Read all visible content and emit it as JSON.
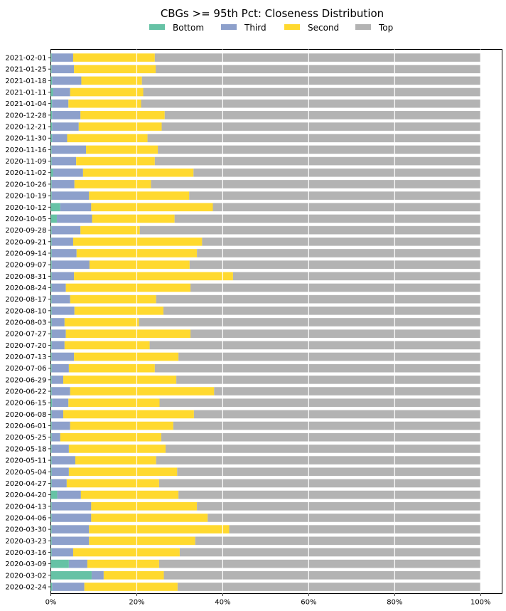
{
  "chart_data": {
    "type": "bar",
    "orientation": "horizontal",
    "stacked": true,
    "title": "CBGs >= 95th Pct: Closeness Distribution",
    "legend": {
      "placement": "top-center",
      "entries": [
        "Bottom",
        "Third",
        "Second",
        "Top"
      ]
    },
    "xlim": [
      0,
      1.05
    ],
    "xticks": [
      0,
      0.2,
      0.4,
      0.6,
      0.8,
      1.0
    ],
    "xtick_labels": [
      "0%",
      "20%",
      "40%",
      "60%",
      "80%",
      "100%"
    ],
    "grid": {
      "x": true,
      "y": false,
      "color": "white"
    },
    "categories": [
      "2021-02-01",
      "2021-01-25",
      "2021-01-18",
      "2021-01-11",
      "2021-01-04",
      "2020-12-28",
      "2020-12-21",
      "2020-11-30",
      "2020-11-16",
      "2020-11-09",
      "2020-11-02",
      "2020-10-26",
      "2020-10-19",
      "2020-10-12",
      "2020-10-05",
      "2020-09-28",
      "2020-09-21",
      "2020-09-14",
      "2020-09-07",
      "2020-08-31",
      "2020-08-24",
      "2020-08-17",
      "2020-08-10",
      "2020-08-03",
      "2020-07-27",
      "2020-07-20",
      "2020-07-13",
      "2020-07-06",
      "2020-06-29",
      "2020-06-22",
      "2020-06-15",
      "2020-06-08",
      "2020-06-01",
      "2020-05-25",
      "2020-05-18",
      "2020-05-11",
      "2020-05-04",
      "2020-04-27",
      "2020-04-20",
      "2020-04-13",
      "2020-04-06",
      "2020-03-30",
      "2020-03-23",
      "2020-03-16",
      "2020-03-09",
      "2020-03-02",
      "2020-02-24"
    ],
    "series": [
      {
        "name": "Bottom",
        "color": "#66c2a5",
        "values": [
          0.002,
          0.002,
          0.003,
          0.005,
          0.003,
          0.003,
          0.003,
          0.003,
          0.002,
          0.002,
          0.005,
          0.002,
          0.002,
          0.022,
          0.014,
          0.002,
          0.002,
          0.002,
          0.002,
          0.002,
          0.002,
          0.002,
          0.002,
          0.002,
          0.002,
          0.002,
          0.002,
          0.002,
          0.002,
          0.002,
          0.003,
          0.002,
          0.002,
          0.002,
          0.002,
          0.002,
          0.002,
          0.002,
          0.015,
          0.002,
          0.002,
          0.002,
          0.002,
          0.002,
          0.042,
          0.095,
          0.003
        ]
      },
      {
        "name": "Third",
        "color": "#8da0cb",
        "values": [
          0.05,
          0.052,
          0.068,
          0.04,
          0.038,
          0.066,
          0.062,
          0.035,
          0.08,
          0.057,
          0.07,
          0.053,
          0.087,
          0.072,
          0.082,
          0.067,
          0.05,
          0.058,
          0.088,
          0.052,
          0.033,
          0.043,
          0.053,
          0.03,
          0.033,
          0.03,
          0.052,
          0.04,
          0.027,
          0.043,
          0.038,
          0.027,
          0.043,
          0.02,
          0.04,
          0.055,
          0.04,
          0.035,
          0.055,
          0.092,
          0.092,
          0.087,
          0.087,
          0.05,
          0.043,
          0.028,
          0.075
        ]
      },
      {
        "name": "Second",
        "color": "#ffd92f",
        "values": [
          0.19,
          0.19,
          0.141,
          0.17,
          0.169,
          0.196,
          0.193,
          0.187,
          0.167,
          0.183,
          0.257,
          0.178,
          0.233,
          0.283,
          0.192,
          0.138,
          0.3,
          0.28,
          0.233,
          0.37,
          0.29,
          0.2,
          0.207,
          0.173,
          0.29,
          0.198,
          0.243,
          0.2,
          0.263,
          0.335,
          0.212,
          0.304,
          0.24,
          0.235,
          0.225,
          0.188,
          0.252,
          0.215,
          0.227,
          0.246,
          0.271,
          0.326,
          0.247,
          0.248,
          0.167,
          0.14,
          0.217
        ]
      },
      {
        "name": "Top",
        "color": "#b3b3b3",
        "values": [
          0.758,
          0.756,
          0.788,
          0.785,
          0.79,
          0.735,
          0.742,
          0.775,
          0.751,
          0.758,
          0.668,
          0.767,
          0.678,
          0.623,
          0.712,
          0.793,
          0.648,
          0.66,
          0.677,
          0.576,
          0.675,
          0.755,
          0.738,
          0.795,
          0.675,
          0.77,
          0.703,
          0.758,
          0.708,
          0.62,
          0.747,
          0.667,
          0.715,
          0.743,
          0.733,
          0.755,
          0.706,
          0.748,
          0.703,
          0.66,
          0.635,
          0.585,
          0.664,
          0.7,
          0.748,
          0.737,
          0.705
        ]
      }
    ]
  }
}
